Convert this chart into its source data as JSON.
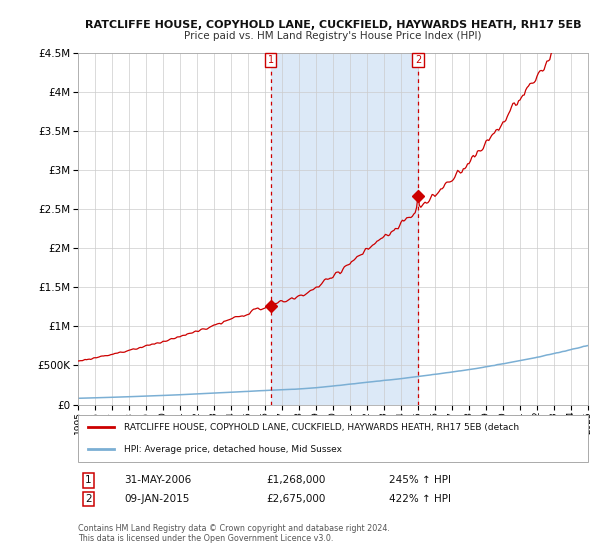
{
  "title": "RATCLIFFE HOUSE, COPYHOLD LANE, CUCKFIELD, HAYWARDS HEATH, RH17 5EB",
  "subtitle": "Price paid vs. HM Land Registry's House Price Index (HPI)",
  "background_color": "#ffffff",
  "plot_bg_color": "#ffffff",
  "shaded_region_color": "#dce9f7",
  "grid_color": "#cccccc",
  "red_line_color": "#cc0000",
  "blue_line_color": "#7bafd4",
  "sale1_idx": 136,
  "sale1_value": 1268000,
  "sale2_idx": 240,
  "sale2_value": 2675000,
  "sale1_date": "31-MAY-2006",
  "sale2_date": "09-JAN-2015",
  "sale1_price": "£1,268,000",
  "sale2_price": "£2,675,000",
  "sale1_hpi": "245% ↑ HPI",
  "sale2_hpi": "422% ↑ HPI",
  "legend_red": "RATCLIFFE HOUSE, COPYHOLD LANE, CUCKFIELD, HAYWARDS HEATH, RH17 5EB (detach",
  "legend_blue": "HPI: Average price, detached house, Mid Sussex",
  "footer": "Contains HM Land Registry data © Crown copyright and database right 2024.\nThis data is licensed under the Open Government Licence v3.0.",
  "ylim": [
    0,
    4500000
  ],
  "yticks": [
    0,
    500000,
    1000000,
    1500000,
    2000000,
    2500000,
    3000000,
    3500000,
    4000000,
    4500000
  ],
  "start_year": 1995,
  "end_year": 2025,
  "n_months": 361
}
